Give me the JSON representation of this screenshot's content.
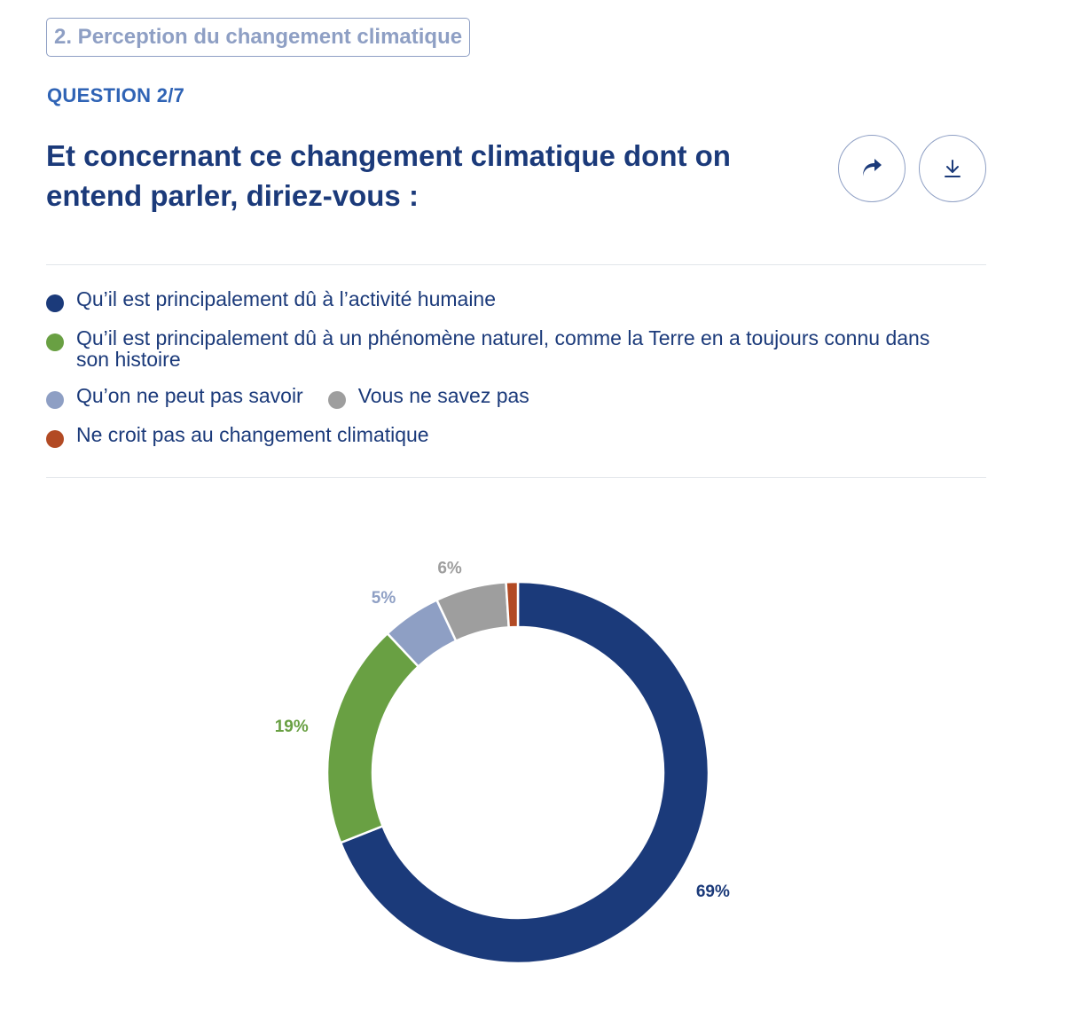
{
  "section": {
    "label": "2. Perception du changement climatique"
  },
  "question": {
    "number": "QUESTION 2/7",
    "title": "Et concernant ce changement climatique dont on entend parler, diriez-vous :"
  },
  "actions": {
    "share_icon": "share-arrow-icon",
    "download_icon": "download-icon"
  },
  "colors": {
    "primary": "#1b3a7a",
    "accent": "#2f63b5",
    "muted": "#8e9fc4"
  },
  "legend": [
    {
      "label": "Qu’il est principalement dû à l’activité humaine",
      "color": "#1b3a7a"
    },
    {
      "label": "Qu’il est principalement dû à un phénomène naturel, comme la Terre en a toujours connu dans son histoire",
      "color": "#69a043"
    },
    {
      "label": "Qu’on ne peut pas savoir",
      "color": "#8e9fc4"
    },
    {
      "label": "Vous ne savez pas",
      "color": "#9e9e9e"
    },
    {
      "label": "Ne croit pas au changement climatique",
      "color": "#b24a24"
    }
  ],
  "chart_data": {
    "type": "pie",
    "donut": true,
    "slices": [
      {
        "name": "Qu’il est principalement dû à l’activité humaine",
        "value": 69,
        "label": "69%",
        "color": "#1b3a7a"
      },
      {
        "name": "Qu’il est principalement dû à un phénomène naturel, comme la Terre en a toujours connu dans son histoire",
        "value": 19,
        "label": "19%",
        "color": "#69a043"
      },
      {
        "name": "Qu’on ne peut pas savoir",
        "value": 5,
        "label": "5%",
        "color": "#8e9fc4"
      },
      {
        "name": "Vous ne savez pas",
        "value": 6,
        "label": "6%",
        "color": "#9e9e9e"
      },
      {
        "name": "Ne croit pas au changement climatique",
        "value": 1,
        "label": "",
        "color": "#b24a24"
      }
    ]
  }
}
